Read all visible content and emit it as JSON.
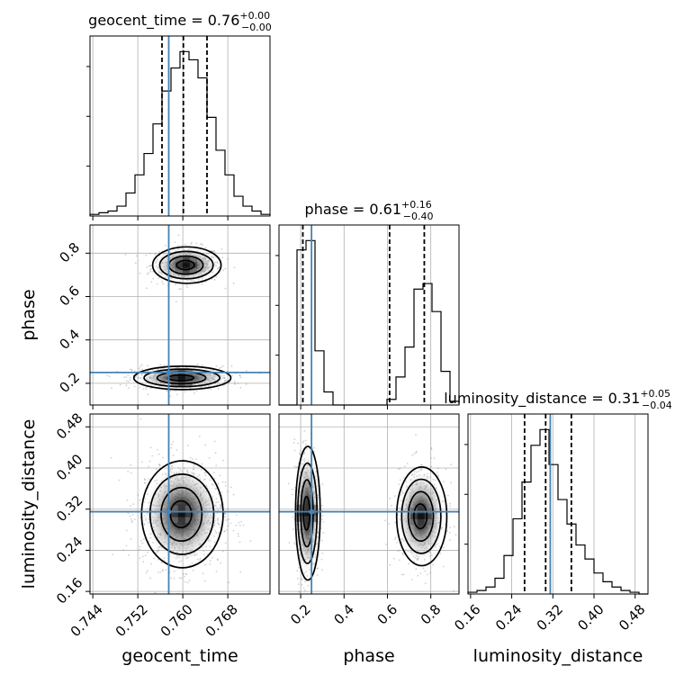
{
  "chart_data": {
    "type": "corner",
    "parameters": [
      "geocent_time",
      "phase",
      "luminosity_distance"
    ],
    "axis_labels": {
      "geocent_time": "geocent_time",
      "phase": "phase",
      "luminosity_distance": "luminosity_distance"
    },
    "titles": [
      {
        "param": "geocent_time",
        "text": "geocent_time = 0.76",
        "plus": "+0.00",
        "minus": "−0.00"
      },
      {
        "param": "phase",
        "text": "phase = 0.61",
        "plus": "+0.16",
        "minus": "−0.40"
      },
      {
        "param": "luminosity_distance",
        "text": "luminosity_distance = 0.31",
        "plus": "+0.05",
        "minus": "−0.04"
      }
    ],
    "ranges": {
      "geocent_time": [
        0.7435,
        0.7755
      ],
      "phase": [
        0.1,
        0.93
      ],
      "luminosity_distance": [
        0.155,
        0.505
      ]
    },
    "ticks": {
      "geocent_time": [
        0.744,
        0.752,
        0.76,
        0.768
      ],
      "phase": [
        0.2,
        0.4,
        0.6,
        0.8
      ],
      "luminosity_distance": [
        0.16,
        0.24,
        0.32,
        0.4,
        0.48
      ]
    },
    "tick_labels": {
      "geocent_time": [
        "0.744",
        "0.752",
        "0.760",
        "0.768"
      ],
      "phase": [
        "0.2",
        "0.4",
        "0.6",
        "0.8"
      ],
      "luminosity_distance": [
        "0.16",
        "0.24",
        "0.32",
        "0.40",
        "0.48"
      ]
    },
    "truths": {
      "geocent_time": 0.7575,
      "phase": 0.25,
      "luminosity_distance": 0.315
    },
    "quantiles": {
      "geocent_time": [
        0.7563,
        0.7601,
        0.7643
      ],
      "phase": [
        0.21,
        0.61,
        0.77
      ],
      "luminosity_distance": [
        0.265,
        0.306,
        0.356
      ]
    },
    "histograms": {
      "geocent_time": {
        "edges": [
          0.7435,
          0.7451,
          0.7467,
          0.7483,
          0.7499,
          0.7515,
          0.7531,
          0.7547,
          0.7563,
          0.7579,
          0.7595,
          0.7611,
          0.7627,
          0.7643,
          0.7659,
          0.7675,
          0.7691,
          0.7707,
          0.7723,
          0.7739,
          0.7755
        ],
        "counts": [
          1,
          2,
          3,
          6,
          14,
          25,
          38,
          56,
          76,
          90,
          100,
          95,
          84,
          60,
          40,
          25,
          12,
          6,
          3,
          1
        ]
      },
      "phase": {
        "edges": [
          0.1,
          0.1415,
          0.183,
          0.2245,
          0.266,
          0.3075,
          0.349,
          0.3905,
          0.432,
          0.4735,
          0.515,
          0.5565,
          0.598,
          0.6395,
          0.681,
          0.7225,
          0.764,
          0.8055,
          0.847,
          0.8885,
          0.93
        ],
        "counts": [
          0,
          0,
          83,
          88,
          29,
          7,
          0,
          0,
          0,
          0,
          0,
          0,
          3,
          15,
          31,
          62,
          65,
          50,
          18,
          2
        ]
      },
      "luminosity_distance": {
        "edges": [
          0.155,
          0.1725,
          0.19,
          0.2075,
          0.225,
          0.2425,
          0.26,
          0.2775,
          0.295,
          0.3125,
          0.33,
          0.3475,
          0.365,
          0.3825,
          0.4,
          0.4175,
          0.435,
          0.4525,
          0.47,
          0.4875,
          0.505
        ],
        "counts": [
          1,
          2,
          4,
          9,
          22,
          43,
          64,
          85,
          94,
          74,
          54,
          40,
          28,
          20,
          12,
          7,
          4,
          2,
          1,
          0
        ]
      }
    },
    "grid": true,
    "truth_color": "#4682b4",
    "contour_levels": [
      "0.5σ",
      "1σ",
      "1.5σ",
      "2σ"
    ],
    "pairs": [
      {
        "x": "geocent_time",
        "y": "phase",
        "modes": [
          {
            "center": [
              0.7606,
              0.745
            ],
            "width": [
              0.0062,
              0.084
            ],
            "weight": 0.48
          },
          {
            "center": [
              0.7598,
              0.225
            ],
            "width": [
              0.0088,
              0.054
            ],
            "weight": 0.52
          }
        ]
      },
      {
        "x": "geocent_time",
        "y": "luminosity_distance",
        "modes": [
          {
            "center": [
              0.7598,
              0.31
            ],
            "width": [
              0.0074,
              0.104
            ],
            "weight": 1.0
          }
        ]
      },
      {
        "x": "phase",
        "y": "luminosity_distance",
        "modes": [
          {
            "center": [
              0.23,
              0.312
            ],
            "width": [
              0.058,
              0.13
            ],
            "weight": 0.52
          },
          {
            "center": [
              0.755,
              0.306
            ],
            "width": [
              0.118,
              0.096
            ],
            "weight": 0.48
          }
        ]
      }
    ]
  }
}
